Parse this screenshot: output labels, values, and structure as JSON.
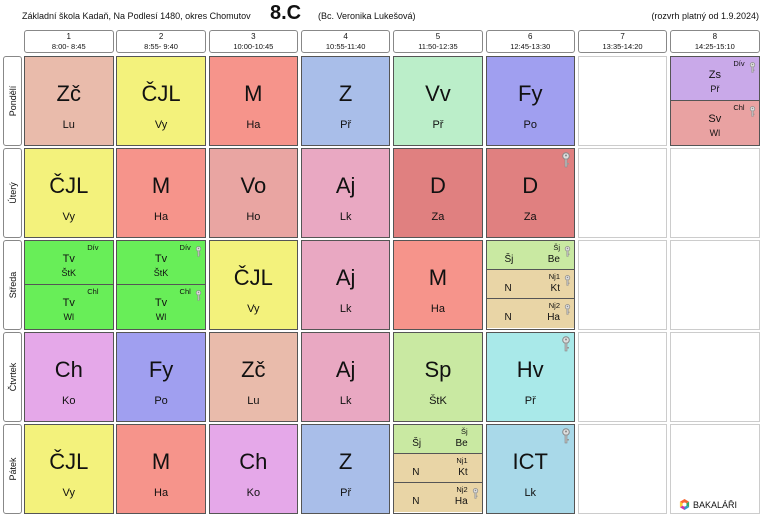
{
  "header": {
    "school": "Základní škola Kadaň, Na Podlesí 1480, okres Chomutov",
    "class": "8.C",
    "teacher": "(Bc. Veronika Lukešová)",
    "validity": "(rozvrh platný od 1.9.2024)"
  },
  "periods": [
    {
      "number": "1",
      "time": "8:00- 8:45"
    },
    {
      "number": "2",
      "time": "8:55- 9:40"
    },
    {
      "number": "3",
      "time": "10:00-10:45"
    },
    {
      "number": "4",
      "time": "10:55-11:40"
    },
    {
      "number": "5",
      "time": "11:50-12:35"
    },
    {
      "number": "6",
      "time": "12:45-13:30"
    },
    {
      "number": "7",
      "time": "13:35-14:20"
    },
    {
      "number": "8",
      "time": "14:25-15:10"
    }
  ],
  "days": [
    {
      "name": "Pondělí",
      "lessons": [
        {
          "subject": "Zč",
          "teacher": "Lu",
          "color": "#e9bbab"
        },
        {
          "subject": "ČJL",
          "teacher": "Vy",
          "color": "#f3f27c"
        },
        {
          "subject": "M",
          "teacher": "Ha",
          "color": "#f6948b"
        },
        {
          "subject": "Z",
          "teacher": "Př",
          "color": "#a9bee9"
        },
        {
          "subject": "Vv",
          "teacher": "Př",
          "color": "#bbeec9"
        },
        {
          "subject": "Fy",
          "teacher": "Po",
          "color": "#a09ff0"
        },
        null,
        {
          "parts": [
            {
              "group": "Dív",
              "subject": "Zs",
              "teacher": "Př",
              "color": "#c9a9e9",
              "key": true
            },
            {
              "group": "Chl",
              "subject": "Sv",
              "teacher": "Wl",
              "color": "#e9a2a2",
              "key": true
            }
          ]
        }
      ]
    },
    {
      "name": "Úterý",
      "lessons": [
        {
          "subject": "ČJL",
          "teacher": "Vy",
          "color": "#f3f27c"
        },
        {
          "subject": "M",
          "teacher": "Ha",
          "color": "#f6948b"
        },
        {
          "subject": "Vo",
          "teacher": "Ho",
          "color": "#e9a5a2"
        },
        {
          "subject": "Aj",
          "teacher": "Lk",
          "color": "#e9a8c2"
        },
        {
          "subject": "D",
          "teacher": "Za",
          "color": "#e08080"
        },
        {
          "subject": "D",
          "teacher": "Za",
          "color": "#e08080",
          "key": true
        },
        null,
        null
      ]
    },
    {
      "name": "Středa",
      "lessons": [
        {
          "parts": [
            {
              "group": "Dív",
              "subject": "Tv",
              "teacher": "ŠtK",
              "color": "#68ee58"
            },
            {
              "group": "Chl",
              "subject": "Tv",
              "teacher": "Wl",
              "color": "#68ee58"
            }
          ]
        },
        {
          "parts": [
            {
              "group": "Dív",
              "subject": "Tv",
              "teacher": "ŠtK",
              "color": "#68ee58",
              "key": true
            },
            {
              "group": "Chl",
              "subject": "Tv",
              "teacher": "Wl",
              "color": "#68ee58",
              "key": true
            }
          ]
        },
        {
          "subject": "ČJL",
          "teacher": "Vy",
          "color": "#f3f27c"
        },
        {
          "subject": "Aj",
          "teacher": "Lk",
          "color": "#e9a8c2"
        },
        {
          "subject": "M",
          "teacher": "Ha",
          "color": "#f6948b"
        },
        {
          "parts": [
            {
              "group": "Šj",
              "subject": "Šj",
              "teacher": "Be",
              "color": "#c9e9a2",
              "key": true
            },
            {
              "group": "Nj1",
              "subject": "N",
              "teacher": "Kt",
              "color": "#e9d5a6",
              "key": true
            },
            {
              "group": "Nj2",
              "subject": "N",
              "teacher": "Ha",
              "color": "#e9d5a6",
              "key": true
            }
          ]
        },
        null,
        null
      ]
    },
    {
      "name": "Čtvrtek",
      "lessons": [
        {
          "subject": "Ch",
          "teacher": "Ko",
          "color": "#e5a8e9"
        },
        {
          "subject": "Fy",
          "teacher": "Po",
          "color": "#a09ff0"
        },
        {
          "subject": "Zč",
          "teacher": "Lu",
          "color": "#e9bbab"
        },
        {
          "subject": "Aj",
          "teacher": "Lk",
          "color": "#e9a8c2"
        },
        {
          "subject": "Sp",
          "teacher": "ŠtK",
          "color": "#c9e9a2"
        },
        {
          "subject": "Hv",
          "teacher": "Př",
          "color": "#a9e9e9",
          "key": true
        },
        null,
        null
      ]
    },
    {
      "name": "Pátek",
      "lessons": [
        {
          "subject": "ČJL",
          "teacher": "Vy",
          "color": "#f3f27c"
        },
        {
          "subject": "M",
          "teacher": "Ha",
          "color": "#f6948b"
        },
        {
          "subject": "Ch",
          "teacher": "Ko",
          "color": "#e5a8e9"
        },
        {
          "subject": "Z",
          "teacher": "Př",
          "color": "#a9bee9"
        },
        {
          "parts": [
            {
              "group": "Šj",
              "subject": "Šj",
              "teacher": "Be",
              "color": "#c9e9a2"
            },
            {
              "group": "Nj1",
              "subject": "N",
              "teacher": "Kt",
              "color": "#e9d5a6"
            },
            {
              "group": "Nj2",
              "subject": "N",
              "teacher": "Ha",
              "color": "#e9d5a6",
              "key": true
            }
          ]
        },
        {
          "subject": "ICT",
          "teacher": "Lk",
          "color": "#a9d9e9",
          "key": true
        },
        null,
        null
      ]
    }
  ],
  "logo": "BAKALÁŘI"
}
